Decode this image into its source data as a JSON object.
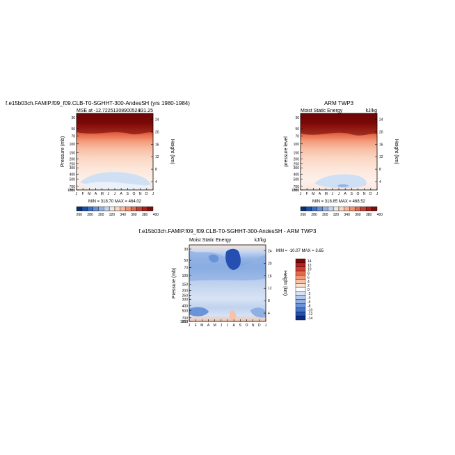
{
  "chart_data": [
    {
      "type": "heatmap",
      "title": "f.e15b03ch.FAMIP.f09_f09.CLB-T0-SGHHT-300-AndesSH (yrs 1980-1984)",
      "subtitle_left": "MSE at -12.72251308900524",
      "subtitle_right": "331.25",
      "ylabel": "Pressure (mb)",
      "y2label": "Height (km)",
      "x_ticks": [
        "J",
        "F",
        "M",
        "A",
        "M",
        "J",
        "J",
        "A",
        "S",
        "O",
        "N",
        "D",
        "J"
      ],
      "y_ticks": [
        "30",
        "50",
        "70",
        "100",
        "150",
        "200",
        "250",
        "300",
        "400",
        "500",
        "700",
        "850",
        "1000"
      ],
      "y2_ticks": [
        "24",
        "20",
        "16",
        "12",
        "8",
        "4"
      ],
      "stats": "MIN = 318.70   MAX = 464.02",
      "colorbar_ticks": [
        "260",
        "280",
        "300",
        "320",
        "340",
        "360",
        "380",
        "400"
      ]
    },
    {
      "type": "heatmap",
      "title": "ARM TWP3",
      "subtitle_left": "Moist Static Energy",
      "subtitle_right": "kJ/kg",
      "ylabel": "pressure level",
      "y2label": "Height (km)",
      "x_ticks": [
        "J",
        "F",
        "M",
        "A",
        "M",
        "J",
        "J",
        "A",
        "S",
        "O",
        "N",
        "D",
        "J"
      ],
      "y_ticks": [
        "30",
        "50",
        "70",
        "100",
        "150",
        "200",
        "250",
        "300",
        "400",
        "500",
        "700",
        "850",
        "1000"
      ],
      "y2_ticks": [
        "24",
        "20",
        "16",
        "12",
        "8",
        "4"
      ],
      "stats": "MIN = 318.85   MAX = 468.52",
      "colorbar_ticks": [
        "260",
        "280",
        "300",
        "320",
        "340",
        "360",
        "380",
        "400"
      ]
    },
    {
      "type": "heatmap",
      "title": "f.e15b03ch.FAMIP.f09_f09.CLB-T0-SGHHT-300-AndesSH - ARM TWP3",
      "subtitle_left": "Moist Static Energy",
      "subtitle_right": "kJ/kg",
      "ylabel": "Pressure (mb)",
      "y2label": "Height (km)",
      "x_ticks": [
        "J",
        "F",
        "M",
        "A",
        "M",
        "J",
        "J",
        "A",
        "S",
        "O",
        "N",
        "D",
        "J"
      ],
      "y_ticks": [
        "30",
        "50",
        "70",
        "100",
        "150",
        "200",
        "250",
        "300",
        "400",
        "500",
        "700",
        "850",
        "1000"
      ],
      "y2_ticks": [
        "24",
        "20",
        "16",
        "12",
        "8",
        "4"
      ],
      "stats": "MIN = -10.07  MAX =   3.65",
      "colorbar_ticks": [
        "14",
        "12",
        "10",
        "8",
        "6",
        "4",
        "2",
        "0",
        "-2",
        "-4",
        "-6",
        "-8",
        "-10",
        "-12",
        "-14"
      ]
    }
  ],
  "colors": {
    "mse_scale": [
      "#08306b",
      "#1c4fa8",
      "#3a6fc9",
      "#6592d6",
      "#93b4e3",
      "#c3d5ef",
      "#f2e6df",
      "#f9d7c4",
      "#f6b89b",
      "#ef9274",
      "#e06a4f",
      "#c94030",
      "#a9201a",
      "#7f0b0b"
    ],
    "diff_scale": [
      "#8b0000",
      "#b22222",
      "#d13b2a",
      "#e56a4a",
      "#f09a7a",
      "#f6c3a8",
      "#fbe3d3",
      "#ffffff",
      "#d6e2f5",
      "#b3c9ec",
      "#8fb0e3",
      "#6a93d8",
      "#4773c8",
      "#254fb0",
      "#0b2d8a"
    ]
  }
}
